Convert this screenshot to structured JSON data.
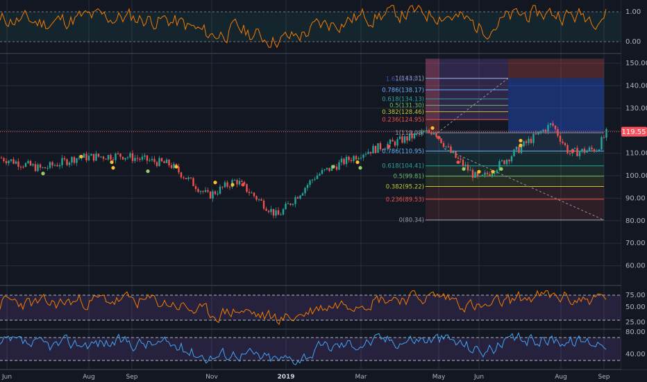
{
  "price_badge": {
    "value": "119.55",
    "color": "#f7525f"
  },
  "colors": {
    "bg": "#131722",
    "grid": "#2a2e39",
    "up": "#26a69a",
    "down": "#ef5350",
    "osc_top": "#f57c00",
    "rsi": "#f57c00",
    "lower": "#42a5f5",
    "band_fill": "#7e57c2",
    "dot_yellow": "#fbc02d",
    "dot_green": "#9ccc65",
    "dot_red": "#ef5350"
  },
  "panes": {
    "top_oscillator": {
      "ticks": [
        "1.00",
        "0.00"
      ]
    },
    "main": {
      "ticks": [
        "150.00",
        "140.00",
        "130.00",
        "120.00",
        "110.00",
        "100.00",
        "90.00",
        "80.00",
        "70.00",
        "60.00"
      ]
    },
    "rsi": {
      "ticks": [
        "75.00",
        "50.00",
        "25.00"
      ]
    },
    "lower_oscillator": {
      "ticks": [
        "80.00",
        "40.00"
      ]
    }
  },
  "x_axis": {
    "labels": [
      "Jun",
      "Aug",
      "Sep",
      "Nov",
      "2019",
      "Mar",
      "May",
      "Jun",
      "Aug",
      "Sep"
    ]
  },
  "fib_retracement": {
    "levels": [
      {
        "text": "1(119.08)",
        "price": 119.08,
        "color": "#9598a1"
      },
      {
        "text": "0.786(110.95)",
        "price": 110.95,
        "color": "#64b5f6"
      },
      {
        "text": "0.618(104.41)",
        "price": 104.41,
        "color": "#26a69a"
      },
      {
        "text": "0.5(99.81)",
        "price": 99.81,
        "color": "#66bb6a"
      },
      {
        "text": "0.382(95.22)",
        "price": 95.22,
        "color": "#c0ca33"
      },
      {
        "text": "0.236(89.53)",
        "price": 89.53,
        "color": "#ef5350"
      },
      {
        "text": "0(80.34)",
        "price": 80.34,
        "color": "#9598a1"
      }
    ]
  },
  "fib_extension": {
    "levels": [
      {
        "text": "1.618(143.1)",
        "price": 143.1,
        "color": "#3f51b5"
      },
      {
        "text": "1(143.31)",
        "price": 143.31,
        "color": "#9598a1"
      },
      {
        "text": "0.786(138.17)",
        "price": 138.17,
        "color": "#64b5f6"
      },
      {
        "text": "0.618(134.13)",
        "price": 134.13,
        "color": "#26a69a"
      },
      {
        "text": "0.5(131.30)",
        "price": 131.3,
        "color": "#66bb6a"
      },
      {
        "text": "0.382(128.46)",
        "price": 128.46,
        "color": "#c0ca33"
      },
      {
        "text": "0.236(124.95)",
        "price": 124.95,
        "color": "#ef5350"
      }
    ]
  },
  "chart_data": {
    "type": "candlestick",
    "x": [
      "Jun",
      "Aug",
      "Sep",
      "Nov",
      "2019",
      "Mar",
      "May",
      "Jun",
      "Aug",
      "Sep"
    ],
    "close": [
      107,
      106,
      110,
      99,
      88,
      105,
      115,
      100,
      120,
      119.55
    ],
    "y_range": [
      55,
      155
    ],
    "last_price": 119.55,
    "rsi_levels": [
      75,
      50,
      25
    ],
    "lower_levels": [
      80,
      40
    ]
  }
}
